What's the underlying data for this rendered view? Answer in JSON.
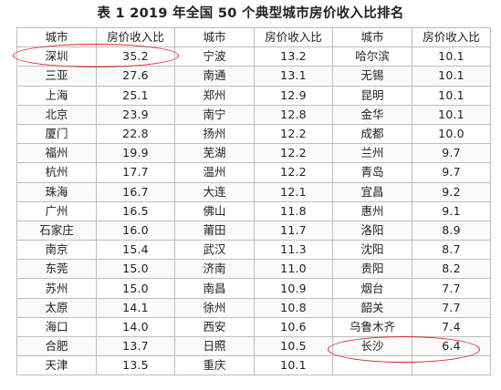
{
  "title": "表 1    2019 年全国 50 个典型城市房价收入比排名",
  "headers": [
    "城市",
    "房价收入比",
    "城市",
    "房价收入比",
    "城市",
    "房价收入比"
  ],
  "rows": [
    [
      "深圳",
      "35.2",
      "宁波",
      "13.2",
      "哈尔滨",
      "10.1"
    ],
    [
      "三亚",
      "27.6",
      "南通",
      "13.1",
      "无锡",
      "10.1"
    ],
    [
      "上海",
      "25.1",
      "郑州",
      "12.9",
      "昆明",
      "10.1"
    ],
    [
      "北京",
      "23.9",
      "南宁",
      "12.8",
      "金华",
      "10.1"
    ],
    [
      "厦门",
      "22.8",
      "扬州",
      "12.2",
      "成都",
      "10.0"
    ],
    [
      "福州",
      "19.9",
      "芜湖",
      "12.2",
      "兰州",
      "9.7"
    ],
    [
      "杭州",
      "17.7",
      "温州",
      "12.2",
      "青岛",
      "9.7"
    ],
    [
      "珠海",
      "16.7",
      "大连",
      "12.1",
      "宜昌",
      "9.2"
    ],
    [
      "广州",
      "16.5",
      "佛山",
      "11.8",
      "惠州",
      "9.1"
    ],
    [
      "石家庄",
      "16.0",
      "莆田",
      "11.7",
      "洛阳",
      "8.9"
    ],
    [
      "南京",
      "15.4",
      "武汉",
      "11.3",
      "沈阳",
      "8.7"
    ],
    [
      "东莞",
      "15.0",
      "济南",
      "11.0",
      "贵阳",
      "8.2"
    ],
    [
      "苏州",
      "15.0",
      "南昌",
      "10.9",
      "烟台",
      "7.7"
    ],
    [
      "太原",
      "14.1",
      "徐州",
      "10.8",
      "韶关",
      "7.7"
    ],
    [
      "海口",
      "14.0",
      "西安",
      "10.6",
      "乌鲁木齐",
      "7.4"
    ],
    [
      "合肥",
      "13.7",
      "日照",
      "10.5",
      "长沙",
      "6.4"
    ],
    [
      "天津",
      "13.5",
      "重庆",
      "10.1",
      "",
      ""
    ]
  ],
  "colors": {
    "highlight_ring": "#d9252a",
    "grid": "#bdbdbd"
  }
}
